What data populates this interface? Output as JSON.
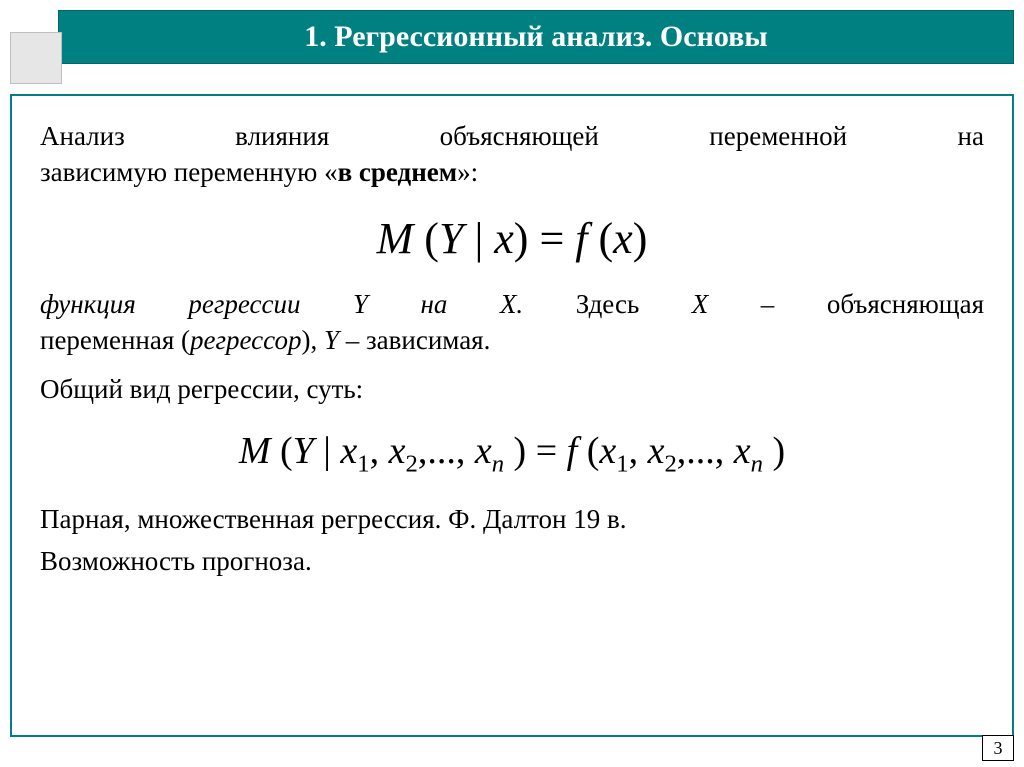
{
  "colors": {
    "title_bg": "#008080",
    "title_text": "#ffffff",
    "corner_bg": "#e6e6e6",
    "corner_border": "#bfbfbf",
    "content_border": "#008080",
    "body_text": "#000000",
    "background": "#ffffff"
  },
  "typography": {
    "title_fontsize": 30,
    "title_weight": "bold",
    "body_fontsize": 27,
    "eq1_fontsize": 44,
    "eq2_fontsize": 38,
    "page_num_fontsize": 18,
    "font_family": "Times New Roman"
  },
  "title": "1. Регрессионный анализ. Основы",
  "para1_line1": "Анализ влияния объясняющей переменной на",
  "para1_line2": "зависимую переменную «",
  "para1_bold": "в среднем",
  "para1_line2_end": "»:",
  "eq1": {
    "M": "M",
    "open": " (",
    "Y": "Y",
    "bar": " | ",
    "x": "x",
    "close": ")",
    "eq": " = ",
    "f": "f",
    "open2": " (",
    "x2": "x",
    "close2": ")"
  },
  "para2_a": "функция регрессии Y на X.",
  "para2_b": "  Здесь ",
  "para2_c": "X",
  "para2_d": " – объясняющая",
  "para2_line2_a": "переменная (",
  "para2_line2_b": "регрессор",
  "para2_line2_c": "), ",
  "para2_line2_d": "Y",
  "para2_line2_e": " – зависимая.",
  "para3": "Общий вид регрессии, суть:",
  "eq2": {
    "M": "M",
    "open": " (",
    "Y": "Y",
    "bar": " | ",
    "x1": "x",
    "s1": "1",
    "c": ", ",
    "x2": "x",
    "s2": "2",
    "dots": ",..., ",
    "xn": "x",
    "sn": "n",
    "close": " )",
    "eq": " = ",
    "f": "f",
    "open2": " (",
    "x1b": "x",
    "s1b": "1",
    "c2": ", ",
    "x2b": "x",
    "s2b": "2",
    "dots2": ",..., ",
    "xnb": "x",
    "snb": "n",
    "close2": " )"
  },
  "para4": "Парная, множественная регрессия. Ф. Далтон 19 в.",
  "para5": " Возможность прогноза.",
  "page_number": "3"
}
